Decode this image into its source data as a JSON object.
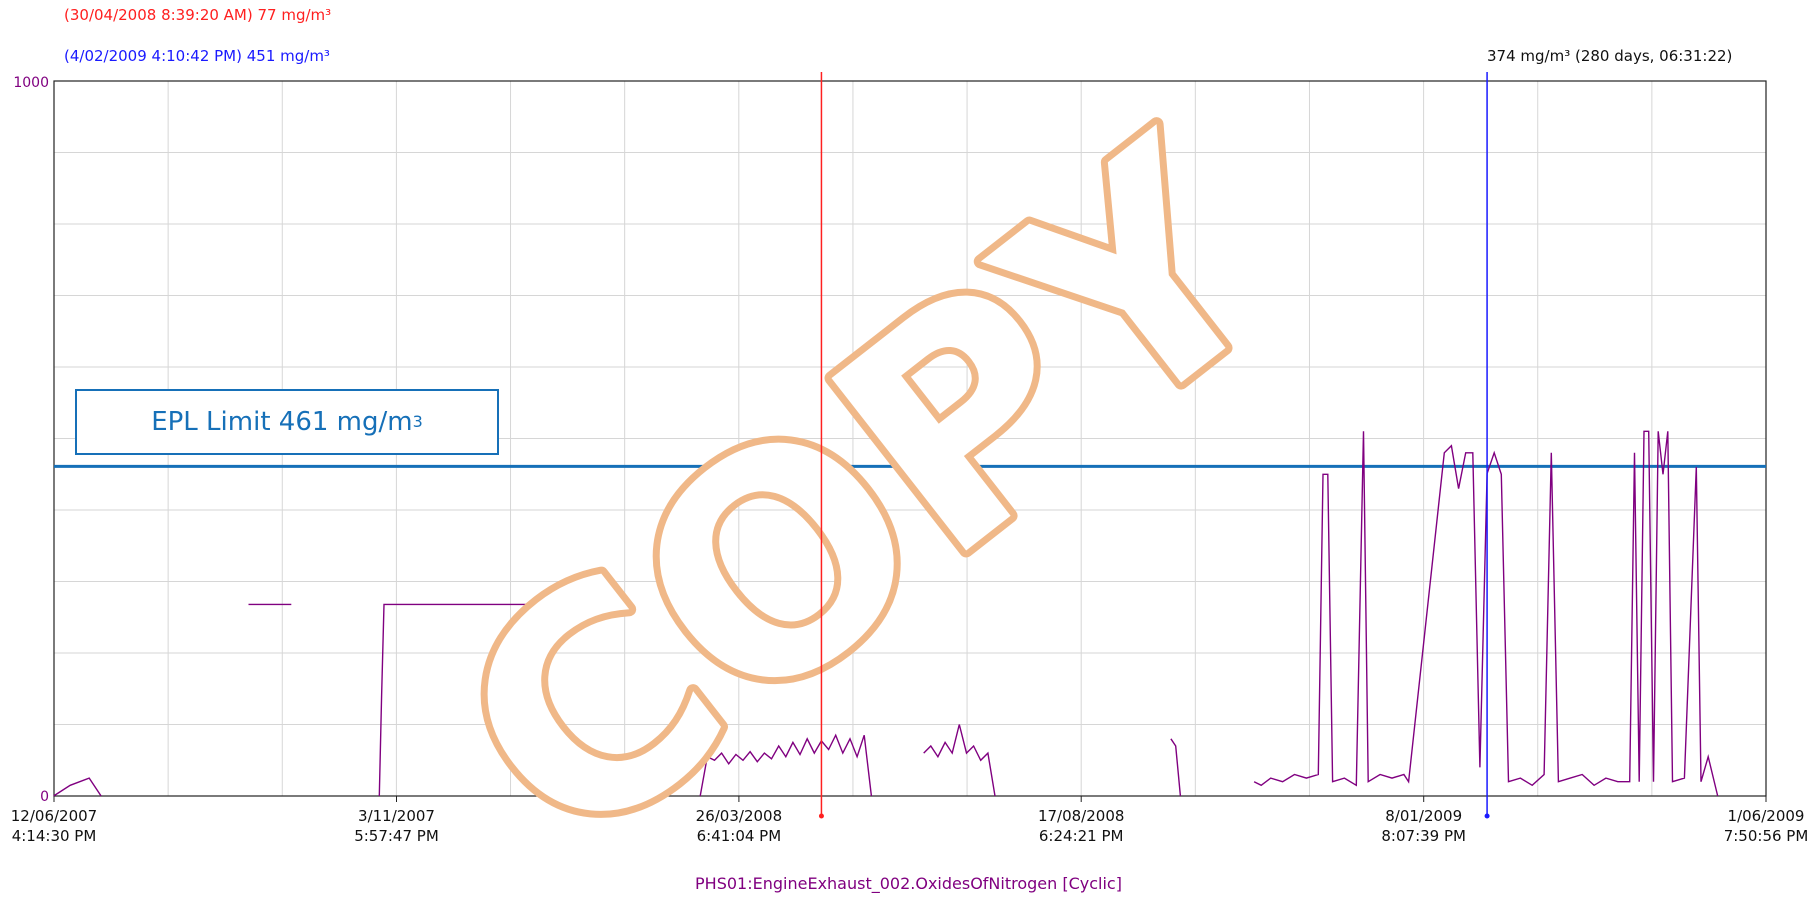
{
  "cursors": {
    "red_readout": "(30/04/2008 8:39:20 AM) 77 mg/m³",
    "blue_readout": "(4/02/2009 4:10:42 PM) 451 mg/m³",
    "delta_readout": "374 mg/m³ (280 days, 06:31:22)",
    "red_color": "#ff2020",
    "blue_color": "#1a1aff"
  },
  "limit": {
    "label": "EPL Limit 461 mg/m",
    "label_sup": "3",
    "value": 461,
    "color": "#1670b8"
  },
  "watermark": {
    "text": "COPY",
    "color": "#f0b888"
  },
  "series_label": "PHS01:EngineExhaust_002.OxidesOfNitrogen [Cyclic]",
  "chart_data": {
    "type": "line",
    "xlabel": "",
    "ylabel": "",
    "ylim": [
      0,
      1000
    ],
    "y_ticks": [
      "0",
      "1000"
    ],
    "x_ticks": [
      {
        "date": "12/06/2007",
        "time": "4:14:30 PM"
      },
      {
        "date": "3/11/2007",
        "time": "5:57:47 PM"
      },
      {
        "date": "26/03/2008",
        "time": "6:41:04 PM"
      },
      {
        "date": "17/08/2008",
        "time": "6:24:21 PM"
      },
      {
        "date": "8/01/2009",
        "time": "8:07:39 PM"
      },
      {
        "date": "1/06/2009",
        "time": "7:50:56 PM"
      }
    ],
    "grid": true,
    "series_color": "#800080",
    "cursor_dates": {
      "red": "2008-04-30",
      "blue": "2009-02-04"
    },
    "series": [
      {
        "name": "PHS01:EngineExhaust_002.OxidesOfNitrogen [Cyclic]",
        "segments": [
          [
            [
              "2007-06-12",
              0
            ],
            [
              "2007-06-19",
              15
            ],
            [
              "2007-06-27",
              25
            ],
            [
              "2007-07-02",
              0
            ]
          ],
          [
            [
              "2007-09-02",
              268
            ],
            [
              "2007-09-20",
              268
            ]
          ],
          [
            [
              "2007-10-27",
              0
            ],
            [
              "2007-10-28",
              140
            ],
            [
              "2007-10-29",
              268
            ],
            [
              "2008-02-05",
              268
            ]
          ],
          [
            [
              "2008-03-10",
              0
            ],
            [
              "2008-03-13",
              55
            ],
            [
              "2008-03-16",
              50
            ],
            [
              "2008-03-19",
              60
            ],
            [
              "2008-03-22",
              45
            ],
            [
              "2008-03-25",
              58
            ],
            [
              "2008-03-28",
              50
            ],
            [
              "2008-03-31",
              62
            ],
            [
              "2008-04-03",
              48
            ],
            [
              "2008-04-06",
              60
            ],
            [
              "2008-04-09",
              52
            ],
            [
              "2008-04-12",
              70
            ],
            [
              "2008-04-15",
              55
            ],
            [
              "2008-04-18",
              75
            ],
            [
              "2008-04-21",
              58
            ],
            [
              "2008-04-24",
              80
            ],
            [
              "2008-04-27",
              60
            ],
            [
              "2008-04-30",
              77
            ],
            [
              "2008-05-03",
              65
            ],
            [
              "2008-05-06",
              85
            ],
            [
              "2008-05-09",
              60
            ],
            [
              "2008-05-12",
              80
            ],
            [
              "2008-05-15",
              55
            ],
            [
              "2008-05-18",
              85
            ],
            [
              "2008-05-21",
              0
            ]
          ],
          [
            [
              "2008-06-12",
              60
            ],
            [
              "2008-06-15",
              70
            ],
            [
              "2008-06-18",
              55
            ],
            [
              "2008-06-21",
              75
            ],
            [
              "2008-06-24",
              60
            ],
            [
              "2008-06-27",
              100
            ],
            [
              "2008-06-30",
              60
            ],
            [
              "2008-07-03",
              70
            ],
            [
              "2008-07-06",
              50
            ],
            [
              "2008-07-09",
              60
            ],
            [
              "2008-07-12",
              0
            ]
          ],
          [
            [
              "2008-09-24",
              80
            ],
            [
              "2008-09-26",
              70
            ],
            [
              "2008-09-28",
              0
            ]
          ],
          [
            [
              "2008-10-29",
              20
            ],
            [
              "2008-11-01",
              15
            ],
            [
              "2008-11-05",
              25
            ],
            [
              "2008-11-10",
              20
            ],
            [
              "2008-11-15",
              30
            ],
            [
              "2008-11-20",
              25
            ],
            [
              "2008-11-25",
              30
            ],
            [
              "2008-11-27",
              450
            ],
            [
              "2008-11-29",
              450
            ],
            [
              "2008-12-01",
              20
            ],
            [
              "2008-12-06",
              25
            ],
            [
              "2008-12-11",
              15
            ],
            [
              "2008-12-14",
              510
            ],
            [
              "2008-12-16",
              20
            ],
            [
              "2008-12-21",
              30
            ],
            [
              "2008-12-26",
              25
            ],
            [
              "2008-12-31",
              30
            ],
            [
              "2009-01-02",
              20
            ],
            [
              "2009-01-17",
              480
            ],
            [
              "2009-01-20",
              490
            ],
            [
              "2009-01-23",
              430
            ],
            [
              "2009-01-26",
              480
            ],
            [
              "2009-01-29",
              480
            ],
            [
              "2009-02-01",
              40
            ],
            [
              "2009-02-04",
              451
            ],
            [
              "2009-02-07",
              480
            ],
            [
              "2009-02-10",
              450
            ],
            [
              "2009-02-13",
              20
            ],
            [
              "2009-02-18",
              25
            ],
            [
              "2009-02-23",
              15
            ],
            [
              "2009-02-28",
              30
            ],
            [
              "2009-03-03",
              480
            ],
            [
              "2009-03-06",
              20
            ],
            [
              "2009-03-11",
              25
            ],
            [
              "2009-03-16",
              30
            ],
            [
              "2009-03-21",
              15
            ],
            [
              "2009-03-26",
              25
            ],
            [
              "2009-03-31",
              20
            ],
            [
              "2009-04-05",
              20
            ],
            [
              "2009-04-07",
              480
            ],
            [
              "2009-04-09",
              20
            ],
            [
              "2009-04-11",
              510
            ],
            [
              "2009-04-13",
              510
            ],
            [
              "2009-04-15",
              20
            ],
            [
              "2009-04-17",
              510
            ],
            [
              "2009-04-19",
              450
            ],
            [
              "2009-04-21",
              510
            ],
            [
              "2009-04-23",
              20
            ],
            [
              "2009-04-28",
              25
            ],
            [
              "2009-05-03",
              460
            ],
            [
              "2009-05-05",
              20
            ],
            [
              "2009-05-08",
              55
            ],
            [
              "2009-05-12",
              0
            ]
          ]
        ]
      }
    ]
  }
}
